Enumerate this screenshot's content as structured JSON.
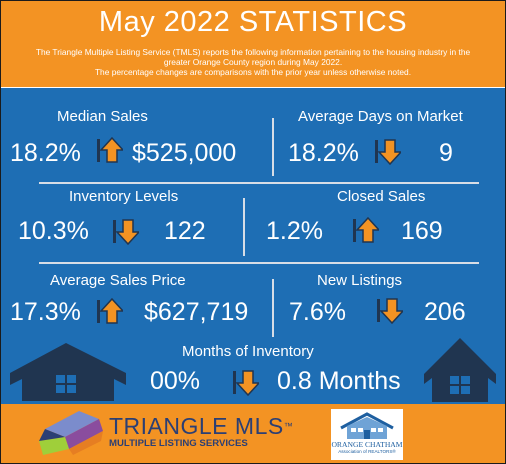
{
  "header": {
    "title": "May 2022 STATISTICS",
    "intro_line1": "The Triangle Multiple Listing Service (TMLS) reports the following information pertaining to the housing industry in the",
    "intro_line2": "greater Orange County region during May 2022.",
    "intro_line3": "The percentage changes are comparisons with the prior year unless otherwise noted."
  },
  "stats": {
    "median_sales": {
      "label": "Median Sales",
      "pct": "18.2%",
      "value": "$525,000",
      "direction": "up"
    },
    "avg_days": {
      "label": "Average Days on Market",
      "pct": "18.2%",
      "value": "9",
      "direction": "down"
    },
    "inventory": {
      "label": "Inventory Levels",
      "pct": "10.3%",
      "value": "122",
      "direction": "down"
    },
    "closed_sales": {
      "label": "Closed Sales",
      "pct": "1.2%",
      "value": "169",
      "direction": "up"
    },
    "avg_price": {
      "label": "Average Sales Price",
      "pct": "17.3%",
      "value": "$627,719",
      "direction": "up"
    },
    "new_listings": {
      "label": "New Listings",
      "pct": "7.6%",
      "value": "206",
      "direction": "down"
    },
    "months_inventory": {
      "label": "Months of Inventory",
      "pct": "00%",
      "value": "0.8 Months",
      "direction": "down"
    }
  },
  "footer": {
    "tmls_name": "TRIANGLE MLS",
    "tmls_tm": "™",
    "tmls_sub": "MULTIPLE LISTING SERVICES",
    "oc_name": "ORANGE CHATHAM",
    "oc_sub": "Association of REALTORS®"
  },
  "colors": {
    "orange": "#f39323",
    "blue": "#1e6eb4",
    "house_navy": "#203550",
    "tmls_navy": "#2b3f74"
  },
  "icons": [
    "up-arrow-icon",
    "down-arrow-icon",
    "house-icon",
    "tmls-logo-icon",
    "oc-house-logo-icon"
  ]
}
